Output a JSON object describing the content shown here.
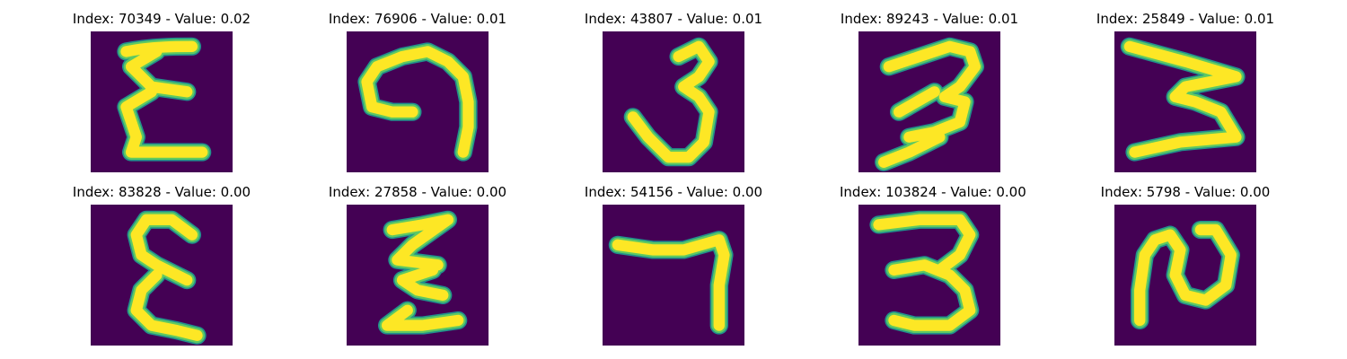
{
  "colors": {
    "background": "#440154",
    "edge": "#21918c",
    "mid": "#5ec962",
    "stroke": "#fde725"
  },
  "panels": [
    {
      "title": "Index: 70349 - Value: 0.02",
      "index": 70349,
      "value": 0.02
    },
    {
      "title": "Index: 76906 - Value: 0.01",
      "index": 76906,
      "value": 0.01
    },
    {
      "title": "Index: 43807 - Value: 0.01",
      "index": 43807,
      "value": 0.01
    },
    {
      "title": "Index: 89243 - Value: 0.01",
      "index": 89243,
      "value": 0.01
    },
    {
      "title": "Index: 25849 - Value: 0.01",
      "index": 25849,
      "value": 0.01
    },
    {
      "title": "Index: 83828 - Value: 0.00",
      "index": 83828,
      "value": 0.0
    },
    {
      "title": "Index: 27858 - Value: 0.00",
      "index": 27858,
      "value": 0.0
    },
    {
      "title": "Index: 54156 - Value: 0.00",
      "index": 54156,
      "value": 0.0
    },
    {
      "title": "Index: 103824 - Value: 0.00",
      "index": 103824,
      "value": 0.0
    },
    {
      "title": "Index: 5798 - Value: 0.00",
      "index": 5798,
      "value": 0.0
    }
  ]
}
